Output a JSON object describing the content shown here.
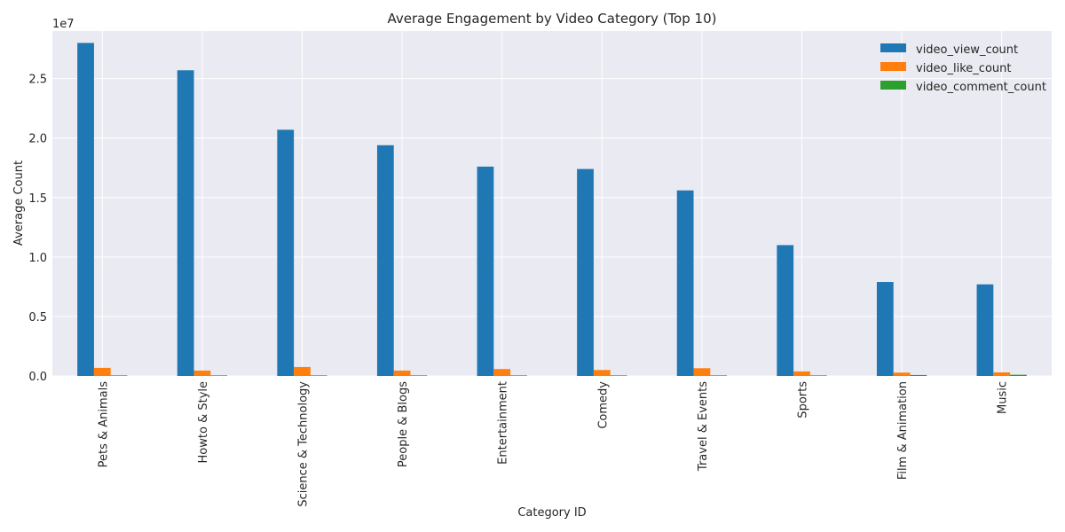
{
  "chart_data": {
    "type": "bar",
    "title": "Average Engagement by Video Category (Top 10)",
    "xlabel": "Category ID",
    "ylabel": "Average Count",
    "y_scale_label": "1e7",
    "y_multiplier": 10000000,
    "ylim": [
      0,
      2.9
    ],
    "yticks": [
      0.0,
      0.5,
      1.0,
      1.5,
      2.0,
      2.5
    ],
    "ytick_labels": [
      "0.0",
      "0.5",
      "1.0",
      "1.5",
      "2.0",
      "2.5"
    ],
    "grid": true,
    "legend_position": "top-right",
    "categories": [
      "Pets & Animals",
      "Howto & Style",
      "Science & Technology",
      "People & Blogs",
      "Entertainment",
      "Comedy",
      "Travel & Events",
      "Sports",
      "Film & Animation",
      "Music"
    ],
    "series": [
      {
        "name": "video_view_count",
        "color": "#1f77b4",
        "values": [
          2.8,
          2.57,
          2.07,
          1.94,
          1.76,
          1.74,
          1.56,
          1.1,
          0.79,
          0.77
        ]
      },
      {
        "name": "video_like_count",
        "color": "#ff7f0e",
        "values": [
          0.068,
          0.045,
          0.075,
          0.045,
          0.058,
          0.05,
          0.065,
          0.038,
          0.028,
          0.03
        ]
      },
      {
        "name": "video_comment_count",
        "color": "#2ca02c",
        "values": [
          0.003,
          0.002,
          0.004,
          0.003,
          0.003,
          0.003,
          0.003,
          0.002,
          0.008,
          0.01
        ]
      }
    ]
  }
}
